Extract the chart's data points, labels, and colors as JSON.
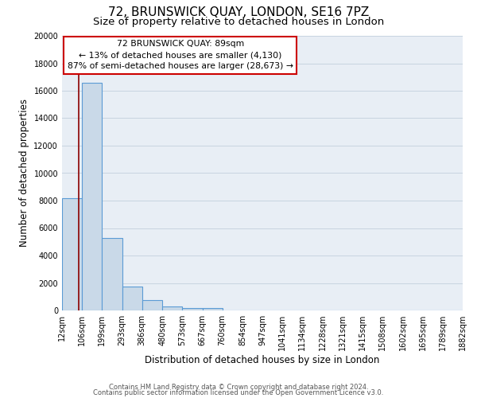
{
  "title": "72, BRUNSWICK QUAY, LONDON, SE16 7PZ",
  "subtitle": "Size of property relative to detached houses in London",
  "xlabel": "Distribution of detached houses by size in London",
  "ylabel": "Number of detached properties",
  "bar_edges": [
    12,
    106,
    199,
    293,
    386,
    480,
    573,
    667,
    760,
    854,
    947,
    1041,
    1134,
    1228,
    1321,
    1415,
    1508,
    1602,
    1695,
    1789,
    1882
  ],
  "bar_heights": [
    8200,
    16600,
    5300,
    1750,
    750,
    300,
    200,
    150,
    0,
    0,
    0,
    0,
    0,
    0,
    0,
    0,
    0,
    0,
    0,
    0
  ],
  "bar_color": "#c9d9e8",
  "bar_edge_color": "#5b9bd5",
  "bar_linewidth": 0.8,
  "property_line_x": 89,
  "property_line_color": "#8b0000",
  "annotation_text": "72 BRUNSWICK QUAY: 89sqm\n← 13% of detached houses are smaller (4,130)\n87% of semi-detached houses are larger (28,673) →",
  "annotation_box_color": "#ffffff",
  "annotation_box_edgecolor": "#cc0000",
  "ylim": [
    0,
    20000
  ],
  "yticks": [
    0,
    2000,
    4000,
    6000,
    8000,
    10000,
    12000,
    14000,
    16000,
    18000,
    20000
  ],
  "xtick_labels": [
    "12sqm",
    "106sqm",
    "199sqm",
    "293sqm",
    "386sqm",
    "480sqm",
    "573sqm",
    "667sqm",
    "760sqm",
    "854sqm",
    "947sqm",
    "1041sqm",
    "1134sqm",
    "1228sqm",
    "1321sqm",
    "1415sqm",
    "1508sqm",
    "1602sqm",
    "1695sqm",
    "1789sqm",
    "1882sqm"
  ],
  "grid_color": "#c8d4e0",
  "background_color": "#e8eef5",
  "footer_line1": "Contains HM Land Registry data © Crown copyright and database right 2024.",
  "footer_line2": "Contains public sector information licensed under the Open Government Licence v3.0.",
  "title_fontsize": 11,
  "subtitle_fontsize": 9.5,
  "tick_fontsize": 7,
  "ylabel_fontsize": 8.5,
  "xlabel_fontsize": 8.5,
  "annotation_fontsize": 7.8,
  "footer_fontsize": 6
}
